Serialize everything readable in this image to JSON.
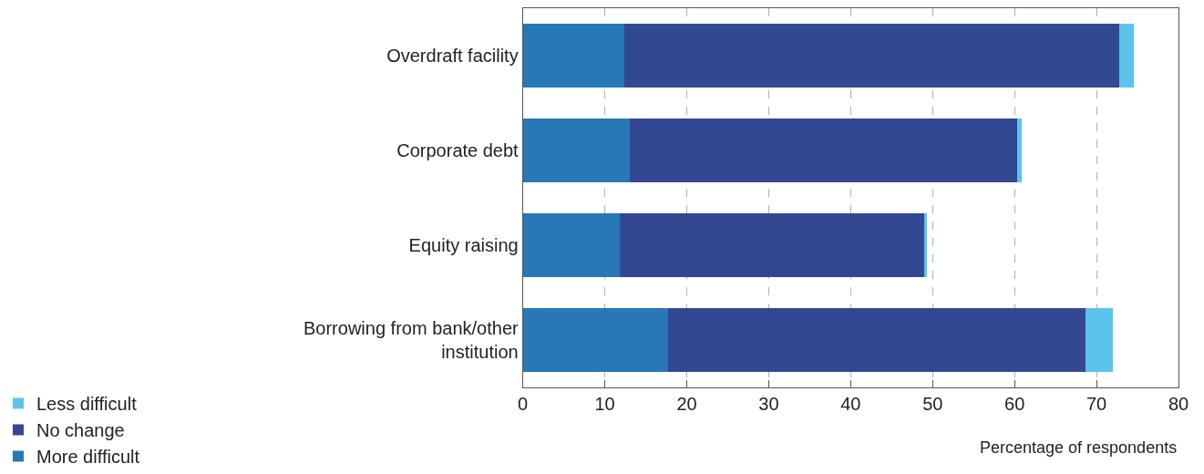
{
  "chart_data": {
    "type": "bar",
    "orientation": "horizontal",
    "stacked": true,
    "categories": [
      "Overdraft facility",
      "Corporate debt",
      "Equity raising",
      "Borrowing from bank/other institution"
    ],
    "series": [
      {
        "name": "More difficult",
        "color": "#2878b8",
        "values": [
          12.4,
          13.1,
          11.8,
          17.7
        ]
      },
      {
        "name": "No change",
        "color": "#334893",
        "values": [
          60.4,
          47.2,
          37.2,
          51.0
        ]
      },
      {
        "name": "Less difficult",
        "color": "#5bc4ec",
        "values": [
          1.7,
          0.6,
          0.3,
          3.3
        ]
      }
    ],
    "xlabel": "Percentage of respondents",
    "xlim": [
      0,
      80
    ],
    "xticks": [
      0,
      10,
      20,
      30,
      40,
      50,
      60,
      70,
      80
    ],
    "grid": "x",
    "legend": "bottom left"
  }
}
